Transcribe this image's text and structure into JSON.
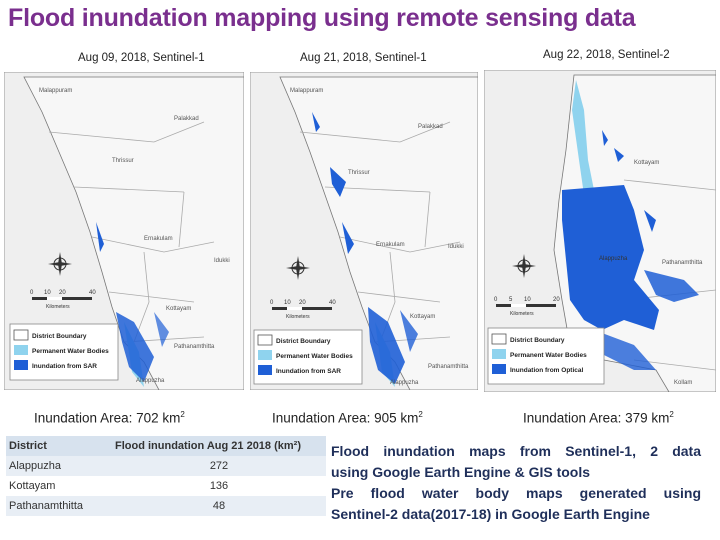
{
  "title": "Flood inundation mapping using remote sensing data",
  "maps": [
    {
      "caption": "Aug 09, 2018, Sentinel-1",
      "area_label": "Inundation Area: 702 km",
      "area_sup": "2",
      "legend": [
        "District Boundary",
        "Permanent Water Bodies",
        "Inundation from SAR"
      ],
      "places": [
        "Malappuram",
        "Palakkad",
        "Thrissur",
        "Ernakulam",
        "Idukki",
        "Kottayam",
        "Alappuzha",
        "Pathanamthitta"
      ],
      "scale": [
        "0",
        "10",
        "20",
        "40"
      ],
      "scale_unit": "Kilometers"
    },
    {
      "caption": "Aug 21, 2018, Sentinel-1",
      "area_label": "Inundation Area: 905 km",
      "area_sup": "2",
      "legend": [
        "District Boundary",
        "Permanent Water Bodies",
        "Inundation from SAR"
      ],
      "places": [
        "Malappuram",
        "Palakkad",
        "Thrissur",
        "Ernakulam",
        "Idukki",
        "Kottayam",
        "Alappuzha",
        "Pathanamthitta"
      ],
      "scale": [
        "0",
        "10",
        "20",
        "40"
      ],
      "scale_unit": "Kilometers"
    },
    {
      "caption": "Aug 22, 2018, Sentinel-2",
      "area_label": "Inundation Area: 379 km",
      "area_sup": "2",
      "legend": [
        "District Boundary",
        "Permanent Water Bodies",
        "Inundation from Optical"
      ],
      "places": [
        "Kottayam",
        "Alappuzha",
        "Pathanamthitta",
        "Kollam"
      ],
      "scale": [
        "0",
        "5",
        "10",
        "20"
      ],
      "scale_unit": "Kilometers"
    }
  ],
  "table": {
    "headers": [
      "District",
      "Flood inundation Aug 21 2018 (km²)"
    ],
    "rows": [
      [
        "Alappuzha",
        "272"
      ],
      [
        "Kottayam",
        "136"
      ],
      [
        "Pathanamthitta",
        "48"
      ]
    ]
  },
  "notes": [
    "Flood inundation maps from Sentinel-1, 2 data",
    "using Google Earth Engine & GIS tools",
    "Pre flood water body maps generated using",
    "Sentinel-2 data(2017-18) in Google Earth Engine"
  ],
  "colors": {
    "title": "#7a2f8e",
    "permanent_water": "#8fd3ee",
    "inundation": "#1f5fd6",
    "district_boundary": "#ffffff",
    "map_bg": "#efefef"
  }
}
